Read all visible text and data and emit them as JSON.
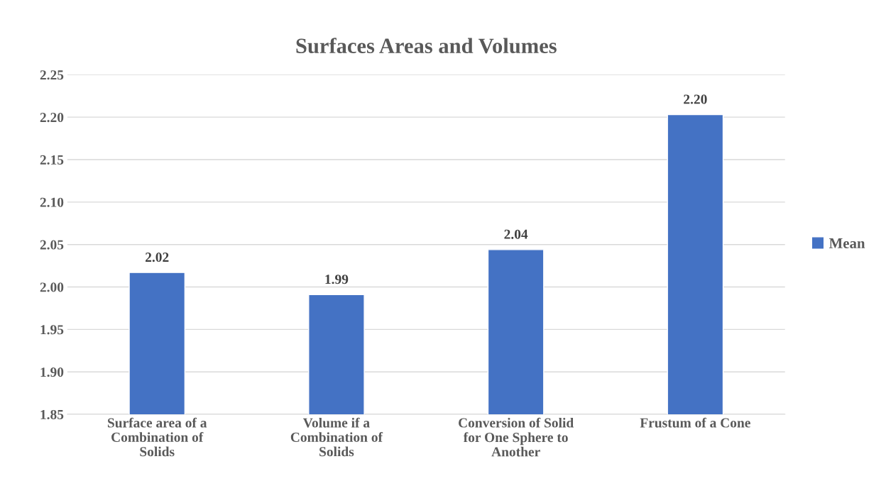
{
  "chart_data": {
    "type": "bar",
    "title": "Surfaces Areas and Volumes",
    "categories": [
      "Surface area of a\nCombination of\nSolids",
      "Volume if a\nCombination of\nSolids",
      "Conversion of Solid\nfor One Sphere to\nAnother",
      "Frustum of a Cone"
    ],
    "series": [
      {
        "name": "Mean",
        "color": "#4472c4",
        "values": [
          2.017,
          1.991,
          2.044,
          2.203
        ],
        "value_labels": [
          "2.02",
          "1.99",
          "2.04",
          "2.20"
        ]
      }
    ],
    "ylim": [
      1.85,
      2.25
    ],
    "yticks": [
      {
        "value": 1.85,
        "label": "1.85"
      },
      {
        "value": 1.9,
        "label": "1.90"
      },
      {
        "value": 1.95,
        "label": "1.95"
      },
      {
        "value": 2.0,
        "label": "2.00"
      },
      {
        "value": 2.05,
        "label": "2.05"
      },
      {
        "value": 2.1,
        "label": "2.10"
      },
      {
        "value": 2.15,
        "label": "2.15"
      },
      {
        "value": 2.2,
        "label": "2.20"
      },
      {
        "value": 2.25,
        "label": "2.25"
      }
    ],
    "grid": "y",
    "legend": "right"
  }
}
